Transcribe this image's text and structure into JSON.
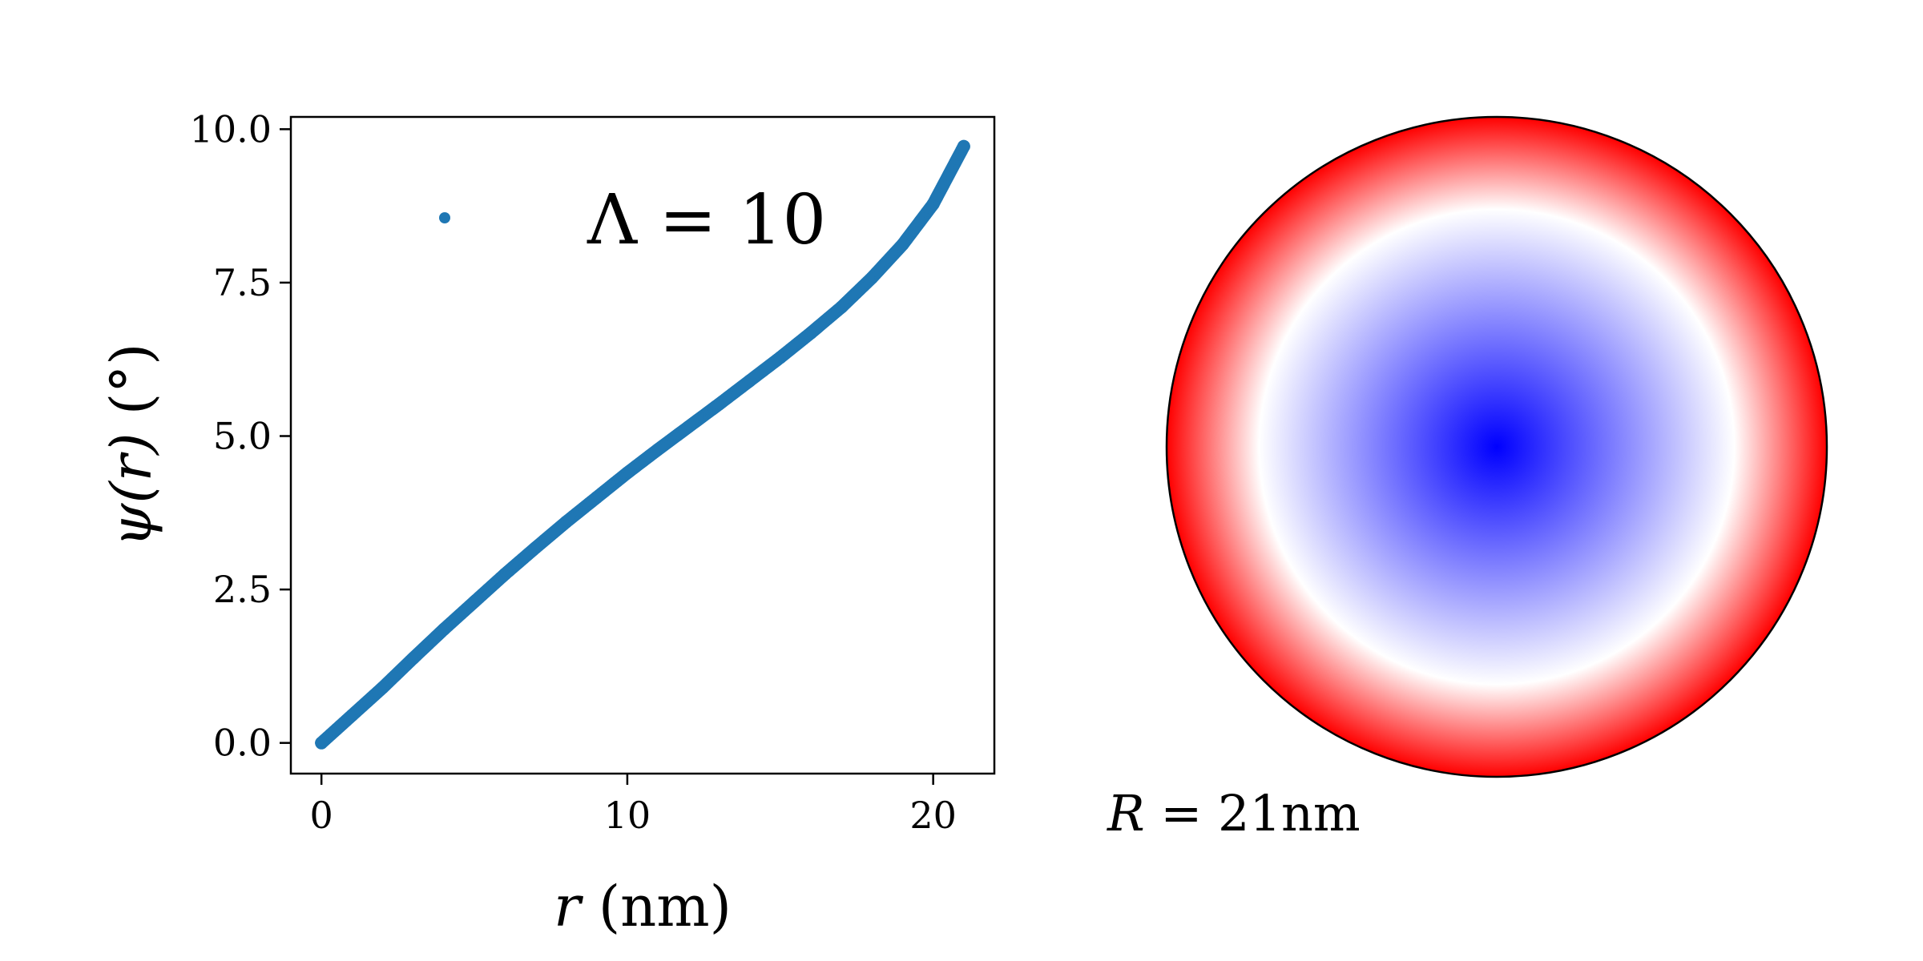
{
  "chart_data": [
    {
      "type": "scatter",
      "xlabel": {
        "var": "r",
        "unit": " (nm)"
      },
      "ylabel": {
        "fn": "ψ",
        "arg": "(r)",
        "unit": " (°)"
      },
      "xlim": [
        -1,
        22
      ],
      "ylim": [
        -0.5,
        10.2
      ],
      "xticks": [
        0,
        10,
        20
      ],
      "xtick_labels": [
        "0",
        "10",
        "20"
      ],
      "yticks": [
        0,
        2.5,
        5,
        7.5,
        10
      ],
      "ytick_labels": [
        "0.0",
        "2.5",
        "5.0",
        "7.5",
        "10.0"
      ],
      "legend": {
        "position": "upper-center",
        "symbol": "Λ",
        "text": " = 10"
      },
      "grid": false,
      "series": [
        {
          "color": "#1f77b4",
          "x": [
            0,
            1,
            2,
            3,
            4,
            5,
            6,
            7,
            8,
            9,
            10,
            11,
            12,
            13,
            14,
            15,
            16,
            17,
            18,
            19,
            20,
            21
          ],
          "y": [
            0.0,
            0.45,
            0.9,
            1.38,
            1.85,
            2.3,
            2.75,
            3.18,
            3.6,
            4.0,
            4.4,
            4.78,
            5.15,
            5.52,
            5.9,
            6.28,
            6.68,
            7.1,
            7.58,
            8.12,
            8.78,
            9.72
          ]
        }
      ]
    },
    {
      "type": "heatmap",
      "shape": "disk",
      "colormap": "bwr",
      "center_color": "#0000ff",
      "mid_color": "#ffffff",
      "edge_color": "#ff0000",
      "label": {
        "var": "R",
        "text": " = 21nm"
      }
    }
  ]
}
